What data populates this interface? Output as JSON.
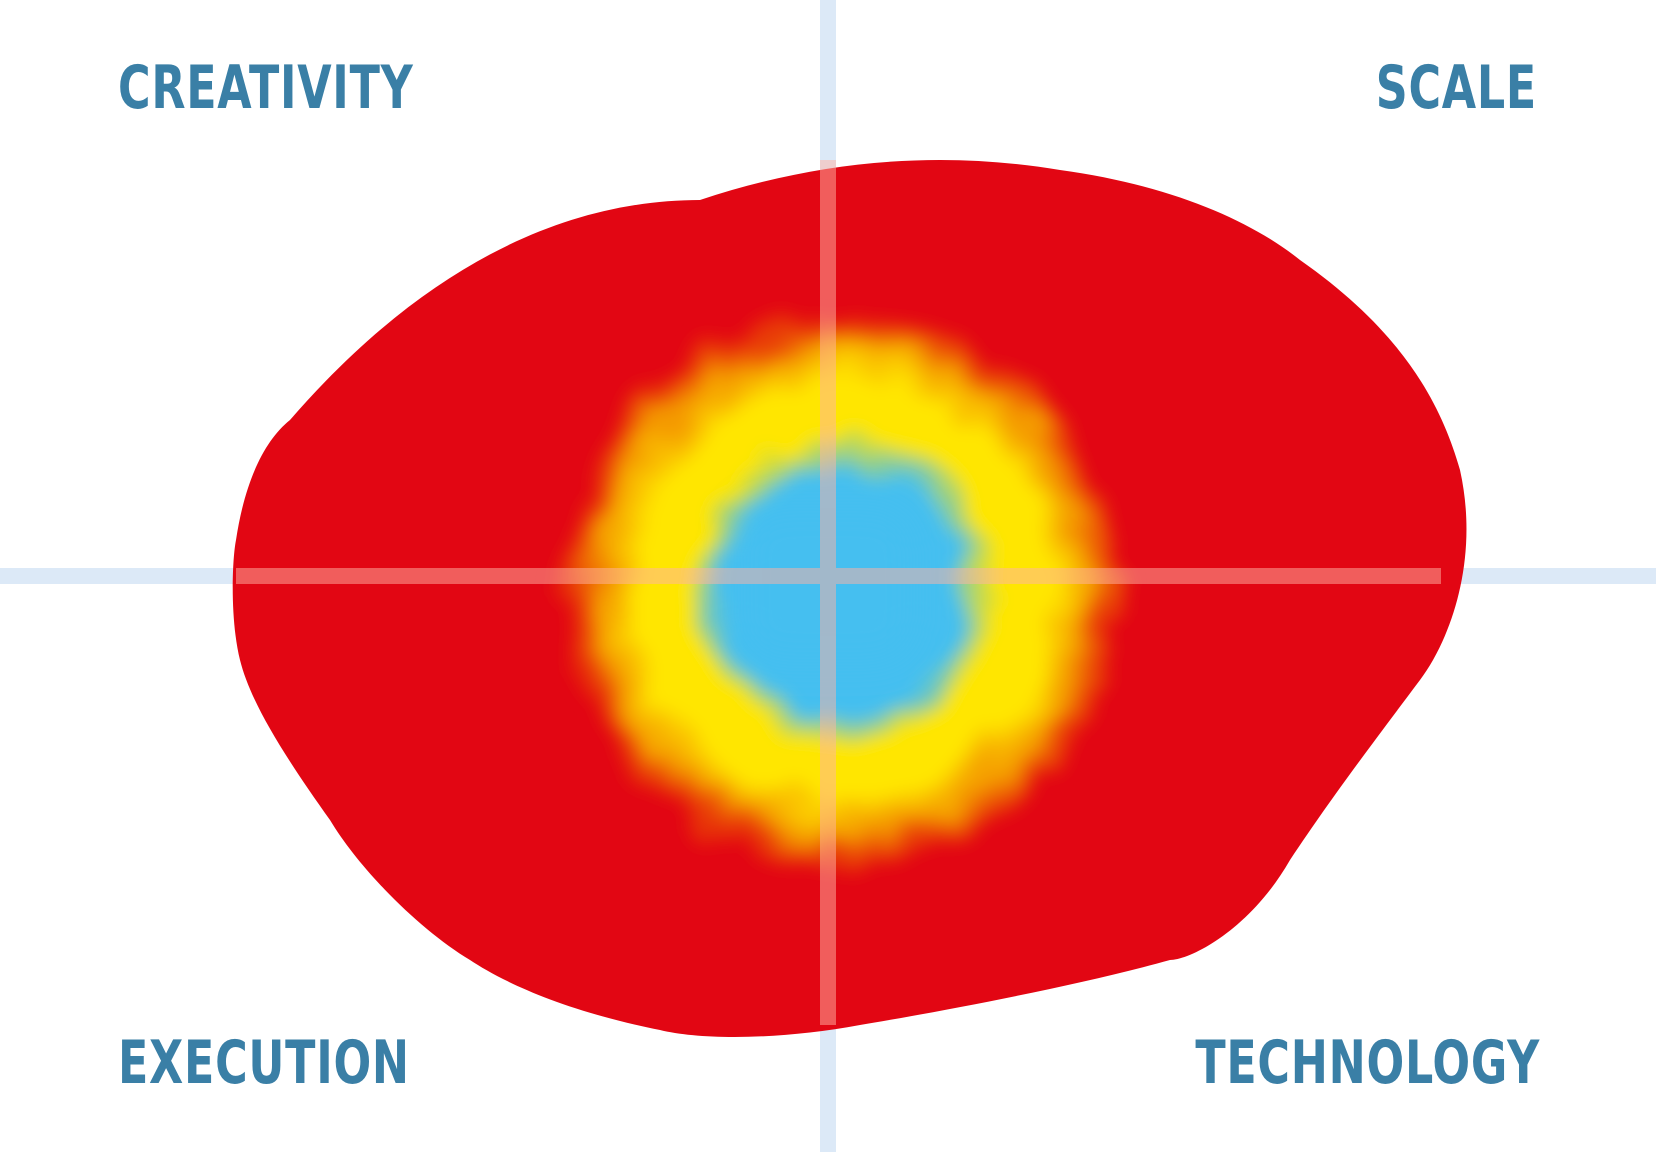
{
  "quadrants": {
    "top_left": "CREATIVITY",
    "top_right": "SCALE",
    "bottom_left": "EXECUTION",
    "bottom_right": "TECHNOLOGY"
  },
  "colors": {
    "label": "#3a7fa6",
    "axis": "#dce9f7",
    "blob": "#e20613",
    "glow_yellow": "#ffe600",
    "glow_orange": "#f39200",
    "core_blue": "#45bff0"
  }
}
